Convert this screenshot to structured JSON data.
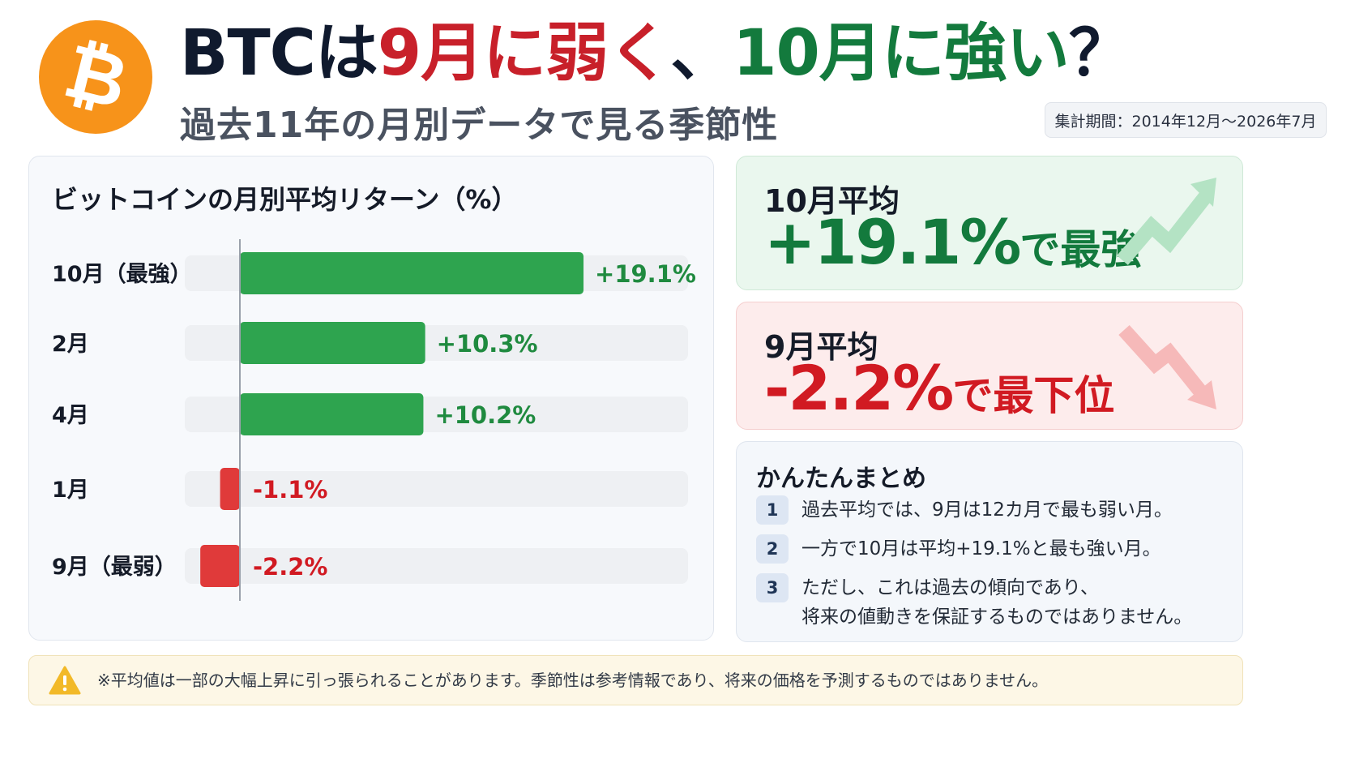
{
  "header": {
    "logo_symbol": "₿",
    "title_parts": [
      "BTCは",
      "9月に弱く",
      "、",
      "10月に強い",
      "？"
    ],
    "subtitle": "過去11年の月別データで見る季節性",
    "period": "集計期間：2014年12月〜2026年7月"
  },
  "chart_data": {
    "type": "bar",
    "orientation": "horizontal",
    "title": "ビットコインの月別平均リターン（%）",
    "categories": [
      "10月（最強）",
      "2月",
      "4月",
      "1月",
      "9月（最弱）"
    ],
    "values": [
      19.1,
      10.3,
      10.2,
      -1.1,
      -2.2
    ],
    "value_labels": [
      "+19.1%",
      "+10.3%",
      "+10.2%",
      "-1.1%",
      "-2.2%"
    ],
    "colors": {
      "positive": "#2ea44f",
      "negative": "#e03a3a",
      "positive_text": "#1f8a3f",
      "negative_text": "#d11a22"
    },
    "xlim": [
      -3,
      24
    ]
  },
  "cards": {
    "october": {
      "label": "10月平均",
      "value": "+19.1%",
      "suffix": "で最強",
      "icon": "trend-up-arrow-icon"
    },
    "september": {
      "label": "9月平均",
      "value": "-2.2%",
      "suffix": "で最下位",
      "icon": "trend-down-arrow-icon"
    }
  },
  "summary": {
    "title": "かんたんまとめ",
    "items": [
      {
        "num": "1",
        "text": "過去平均では、9月は12カ月で最も弱い月。"
      },
      {
        "num": "2",
        "text": "一方で10月は平均+19.1%と最も強い月。"
      },
      {
        "num": "3",
        "text": "ただし、これは過去の傾向であり、\n将来の値動きを保証するものではありません。"
      }
    ]
  },
  "footer": {
    "icon": "warning-icon",
    "text": "※平均値は一部の大幅上昇に引っ張られることがあります。季節性は参考情報であり、将来の価格を予測するものではありません。"
  }
}
